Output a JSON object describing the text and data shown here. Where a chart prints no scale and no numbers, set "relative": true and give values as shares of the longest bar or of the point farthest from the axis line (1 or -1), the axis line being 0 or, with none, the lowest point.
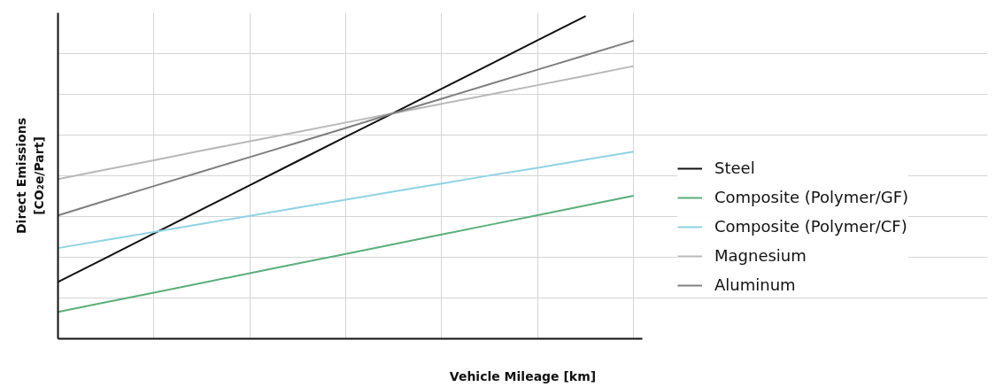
{
  "chart_data": {
    "type": "line",
    "relative": true,
    "xlabel": "Vehicle Mileage [km]",
    "ylabel": "Direct Emissions\n[CO₂e/Part]",
    "categories": [
      null,
      null,
      null,
      null,
      null,
      null,
      null,
      null,
      null,
      null,
      null,
      null,
      null
    ],
    "grid": true,
    "legend": "right",
    "marker": "none",
    "line_style": "solid",
    "series": [
      {
        "name": "Steel",
        "color": "#111111",
        "values": [
          0.176,
          0.251,
          0.326,
          0.401,
          0.476,
          0.551,
          0.626,
          0.7,
          0.775,
          0.85,
          0.925,
          1,
          null
        ]
      },
      {
        "name": "Composite (Polymer/GF)",
        "color": "#5aaf7a",
        "values": [
          0.083,
          0.113,
          0.143,
          0.173,
          0.203,
          0.233,
          0.263,
          0.293,
          0.323,
          0.353,
          0.383,
          0.413,
          0.443
        ]
      },
      {
        "name": "Composite (Polymer/CF)",
        "color": "#8dd3e6",
        "values": [
          0.281,
          0.306,
          0.331,
          0.356,
          0.381,
          0.406,
          0.431,
          0.456,
          0.481,
          0.506,
          0.53,
          0.555,
          0.58
        ]
      },
      {
        "name": "Magnesium",
        "color": "#b8b8b8",
        "values": [
          0.495,
          0.524,
          0.553,
          0.583,
          0.612,
          0.641,
          0.67,
          0.699,
          0.728,
          0.757,
          0.786,
          0.815,
          0.845
        ]
      },
      {
        "name": "Aluminum",
        "color": "#7f7f7f",
        "values": [
          0.382,
          0.428,
          0.473,
          0.518,
          0.563,
          0.608,
          0.653,
          0.699,
          0.744,
          0.789,
          0.834,
          0.879,
          0.924
        ]
      }
    ]
  }
}
